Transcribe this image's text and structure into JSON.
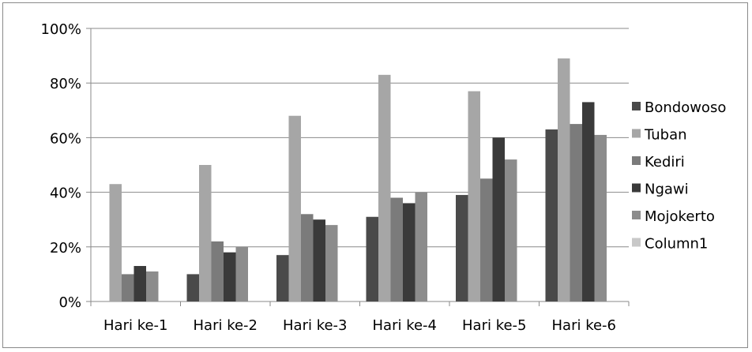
{
  "chart_data": {
    "type": "bar",
    "categories": [
      "Hari ke-1",
      "Hari ke-2",
      "Hari ke-3",
      "Hari ke-4",
      "Hari ke-5",
      "Hari ke-6"
    ],
    "series": [
      {
        "name": "Bondowoso",
        "color": "#4a4a4a",
        "values": [
          0,
          10,
          17,
          31,
          39,
          63
        ]
      },
      {
        "name": "Tuban",
        "color": "#a6a6a6",
        "values": [
          43,
          50,
          68,
          83,
          77,
          89
        ]
      },
      {
        "name": "Kediri",
        "color": "#7b7b7b",
        "values": [
          10,
          22,
          32,
          38,
          45,
          65
        ]
      },
      {
        "name": "Ngawi",
        "color": "#3a3a3a",
        "values": [
          13,
          18,
          30,
          36,
          60,
          73
        ]
      },
      {
        "name": "Mojokerto",
        "color": "#8c8c8c",
        "values": [
          11,
          20,
          28,
          40,
          52,
          61
        ]
      },
      {
        "name": "Column1",
        "color": "#c8c8c8",
        "values": [
          0,
          0,
          0,
          0,
          0,
          0
        ]
      }
    ],
    "ylim": [
      0,
      100
    ],
    "yticks": [
      "0%",
      "20%",
      "40%",
      "60%",
      "80%",
      "100%"
    ],
    "grid": true,
    "legend": "right",
    "gridline_color": "#8a8a8a",
    "axis_color": "#8a8a8a"
  }
}
